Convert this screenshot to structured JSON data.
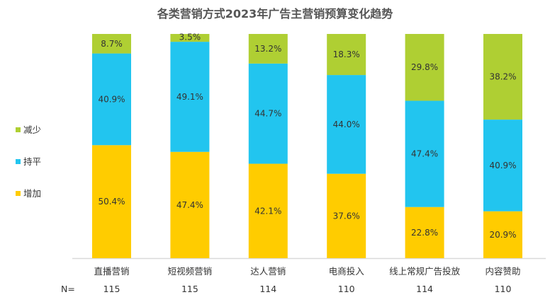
{
  "chart_data": {
    "type": "bar",
    "stacked": true,
    "title": "各类营销方式2023年广告主营销预算变化趋势",
    "categories": [
      "直播营销",
      "短视频营销",
      "达人营销",
      "电商投入",
      "线上常规广告投放",
      "内容赞助"
    ],
    "n_label": "N=",
    "n_values": [
      "115",
      "115",
      "114",
      "110",
      "114",
      "110"
    ],
    "ylim": [
      0,
      100
    ],
    "grid": false,
    "legend_position": "left",
    "series": [
      {
        "name": "增加",
        "color": "#FFCC00",
        "values": [
          50.4,
          47.4,
          42.1,
          37.6,
          22.8,
          20.9
        ],
        "labels": [
          "50.4%",
          "47.4%",
          "42.1%",
          "37.6%",
          "22.8%",
          "20.9%"
        ]
      },
      {
        "name": "持平",
        "color": "#22C5EF",
        "values": [
          40.9,
          49.1,
          44.7,
          44.0,
          47.4,
          40.9
        ],
        "labels": [
          "40.9%",
          "49.1%",
          "44.7%",
          "44.0%",
          "47.4%",
          "40.9%"
        ]
      },
      {
        "name": "减少",
        "color": "#AFCF33",
        "values": [
          8.7,
          3.5,
          13.2,
          18.3,
          29.8,
          38.2
        ],
        "labels": [
          "8.7%",
          "3.5%",
          "13.2%",
          "18.3%",
          "29.8%",
          "38.2%"
        ]
      }
    ]
  }
}
